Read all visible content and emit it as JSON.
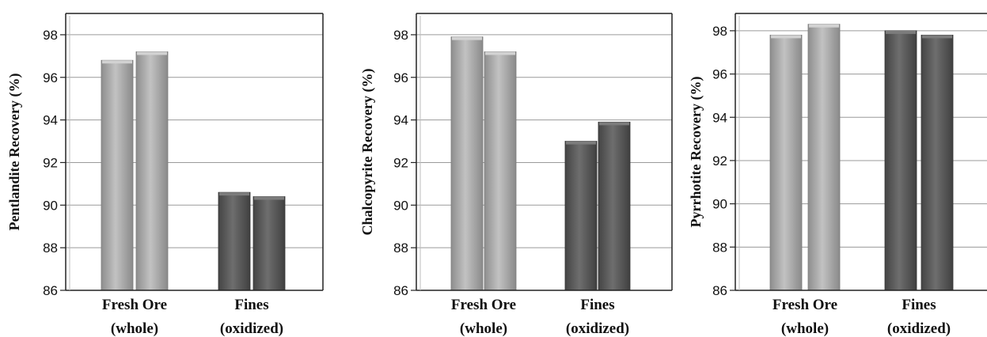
{
  "chart_data": [
    {
      "type": "bar",
      "ylabel": "Pentlandite Recovery (%)",
      "categories": [
        [
          "Fresh Ore",
          "(whole)"
        ],
        [
          "Fines",
          "(oxidized)"
        ]
      ],
      "values": [
        [
          96.8,
          97.2
        ],
        [
          90.6,
          90.4
        ]
      ],
      "ylim": [
        86,
        99
      ],
      "yticks": [
        86,
        88,
        90,
        92,
        94,
        96,
        98
      ],
      "grid": true
    },
    {
      "type": "bar",
      "ylabel": "Chalcopyrite Recovery (%)",
      "categories": [
        [
          "Fresh Ore",
          "(whole)"
        ],
        [
          "Fines",
          "(oxidized)"
        ]
      ],
      "values": [
        [
          97.9,
          97.2
        ],
        [
          93.0,
          93.9
        ]
      ],
      "ylim": [
        86,
        99
      ],
      "yticks": [
        86,
        88,
        90,
        92,
        94,
        96,
        98
      ],
      "grid": true
    },
    {
      "type": "bar",
      "ylabel": "Pyrrhotite Recovery (%)",
      "categories": [
        [
          "Fresh Ore",
          "(whole)"
        ],
        [
          "Fines",
          "(oxidized)"
        ]
      ],
      "values": [
        [
          97.8,
          98.3
        ],
        [
          98.0,
          97.8
        ]
      ],
      "ylim": [
        86,
        98.8
      ],
      "yticks": [
        86,
        88,
        90,
        92,
        94,
        96,
        98
      ],
      "grid": true
    }
  ],
  "colors": {
    "fresh_bar": "#a3a3a3",
    "fresh_bar_highlight": "#d2d2d2",
    "fines_bar": "#555555",
    "fines_bar_highlight": "#7c7c7c",
    "grid": "#9a9a9a",
    "axis": "#222222"
  }
}
